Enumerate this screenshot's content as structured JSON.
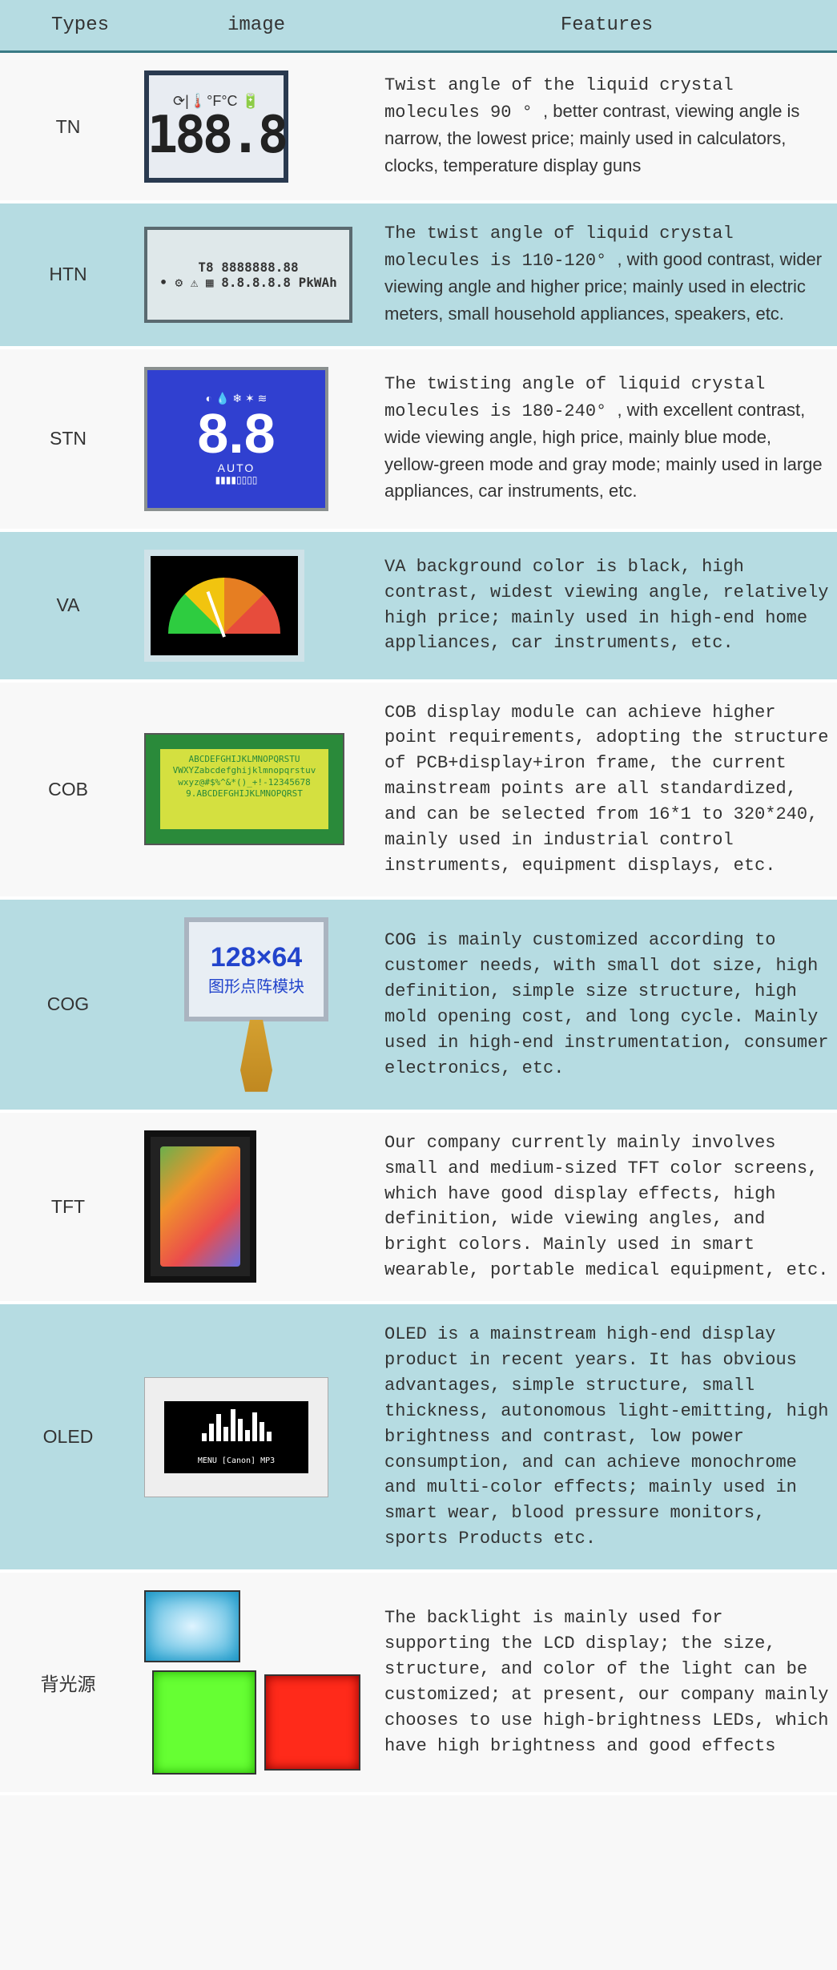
{
  "header": {
    "types": "Types",
    "image": "image",
    "features": "Features"
  },
  "colors": {
    "header_bg": "#b6dce2",
    "header_border": "#3a7a85",
    "row_alt_bg": "#b6dce2",
    "row_bg": "#f8f8f8",
    "text": "#333333"
  },
  "rows": [
    {
      "type": "TN",
      "feature_mono": "Twist angle of the liquid crystal molecules 90 ° ",
      "feature_sans": ", better contrast, viewing angle is narrow, the lowest price; mainly used in calculators, clocks, temperature display guns",
      "img_kind": "tn",
      "tn_icons": "⟳|🌡️°F°C 🔋",
      "tn_digits": "188.8"
    },
    {
      "type": "HTN",
      "feature_mono": "The twist angle of liquid crystal molecules is 110-120° ",
      "feature_sans": ", with good contrast, wider viewing angle and higher price; mainly used in electric meters, small household appliances, speakers, etc.",
      "img_kind": "htn",
      "htn_text": "T8 8888888.88\n• ⚙ ⚠ ▦ 8.8.8.8.8 PkWAh"
    },
    {
      "type": "STN",
      "feature_mono": "The twisting angle of liquid crystal molecules is 180-240° ",
      "feature_sans": ", with excellent contrast, wide viewing angle, high price, mainly blue mode, yellow-green mode and gray mode; mainly used in large appliances, car instruments, etc.",
      "img_kind": "stn",
      "stn_big": "8.8",
      "stn_small": "AUTO",
      "stn_display_bg": "#3040d0"
    },
    {
      "type": "VA",
      "feature_mono": "VA background color is black, high contrast, widest viewing angle, relatively high price; mainly used in high-end home appliances, car instruments, etc.",
      "feature_sans": "",
      "img_kind": "va"
    },
    {
      "type": "COB",
      "feature_mono": "COB display module can achieve higher point requirements, adopting the structure of PCB+display+iron frame, the current mainstream points are all standardized, and can be selected from 16*1 to 320*240, mainly used in industrial control instruments, equipment displays, etc.",
      "feature_sans": "",
      "img_kind": "cob",
      "cob_text": "ABCDEFGHIJKLMNOPQRSTU\nVWXYZabcdefghijklmnopqrstuv\nwxyz@#$%^&*()_+!-12345678\n9.ABCDEFGHIJKLMNOPQRST",
      "cob_pcb_color": "#2a8a3a",
      "cob_screen_color": "#d4e040"
    },
    {
      "type": "COG",
      "feature_mono": "COG is mainly customized according to customer needs, with small dot size, high definition, simple size structure, high mold opening cost, and long cycle. Mainly used in high-end instrumentation, consumer electronics, etc.",
      "feature_sans": "",
      "img_kind": "cog",
      "cog_line1": "128×64",
      "cog_line2": "图形点阵模块"
    },
    {
      "type": "TFT",
      "feature_mono": "Our company currently mainly involves small and medium-sized TFT color screens, which have good display effects, high definition, wide viewing angles, and bright colors. Mainly used in smart wearable, portable medical equipment, etc.",
      "feature_sans": "",
      "img_kind": "tft"
    },
    {
      "type": "OLED",
      "feature_mono": "OLED is a mainstream high-end display product in recent years. It has obvious advantages, simple structure, small thickness, autonomous light-emitting, high brightness and contrast, low power consumption, and can achieve monochrome and multi-color effects; mainly used in smart wear, blood pressure monitors, sports Products etc.",
      "feature_sans": "",
      "img_kind": "oled",
      "oled_menu": "MENU   [Canon]   MP3",
      "oled_bar_heights": [
        10,
        22,
        34,
        18,
        40,
        28,
        14,
        36,
        24,
        12
      ]
    },
    {
      "type": "背光源",
      "feature_mono": "The backlight is mainly used for supporting the LCD display; the size, structure, and color of the light can be customized; at present, our company mainly chooses to use high-brightness LEDs, which have high brightness and good effects",
      "feature_sans": "",
      "img_kind": "backlight",
      "bl_colors": {
        "blue": "#3aaed8",
        "green": "#66ff33",
        "red": "#ff2a1a"
      }
    }
  ]
}
